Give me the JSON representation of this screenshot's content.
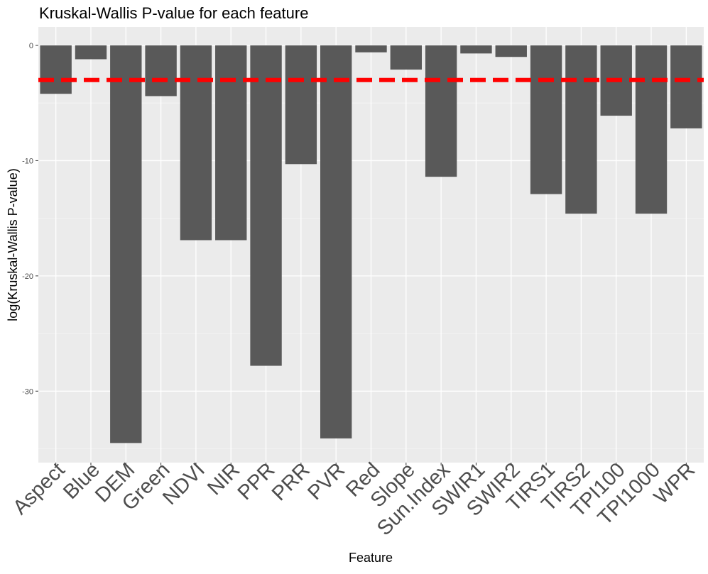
{
  "chart_data": {
    "type": "bar",
    "title": "Kruskal-Wallis P-value for each feature",
    "xlabel": "Feature",
    "ylabel": "log(Kruskal-Wallis P-value)",
    "categories": [
      "Aspect",
      "Blue",
      "DEM",
      "Green",
      "NDVI",
      "NIR",
      "PPR",
      "PRR",
      "PVR",
      "Red",
      "Slope",
      "Sun.Index",
      "SWIR1",
      "SWIR2",
      "TIRS1",
      "TIRS2",
      "TPI100",
      "TPI1000",
      "WPR"
    ],
    "values": [
      -4.2,
      -1.2,
      -34.5,
      -4.4,
      -16.9,
      -16.9,
      -27.8,
      -10.3,
      -34.1,
      -0.6,
      -2.1,
      -11.4,
      -0.7,
      -1.0,
      -12.9,
      -14.6,
      -6.1,
      -14.6,
      -7.2
    ],
    "ylim": [
      -36.2,
      1.6
    ],
    "yticks": [
      0,
      -10,
      -20,
      -30
    ],
    "ytick_labels": [
      "0",
      "-10",
      "-20",
      "-30"
    ],
    "threshold": {
      "value": -3.0,
      "color": "#ff0000",
      "style": "dashed"
    },
    "bar_color": "#595959",
    "panel_background": "#ebebeb",
    "grid": true,
    "legend": "none"
  }
}
